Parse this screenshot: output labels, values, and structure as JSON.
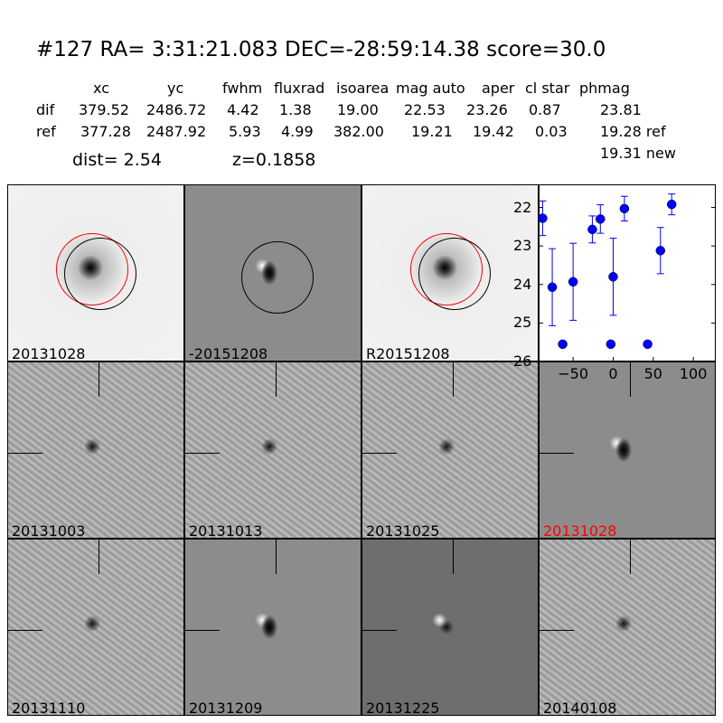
{
  "title": "#127   RA= 3:31:21.083 DEC=-28:59:14.38      score=30.0",
  "table": {
    "columns": [
      "xc",
      "yc",
      "fwhm",
      "fluxrad",
      "isoarea",
      "mag auto",
      "aper",
      "cl star",
      "phmag"
    ],
    "rows": [
      {
        "label": "dif",
        "values": [
          "379.52",
          "2486.72",
          "4.42",
          "1.38",
          "19.00",
          "22.53",
          "23.26",
          "0.87",
          "23.81"
        ]
      },
      {
        "label": "ref",
        "values": [
          "377.28",
          "2487.92",
          "5.93",
          "4.99",
          "382.00",
          "19.21",
          "19.42",
          "0.03",
          "19.28 ref"
        ]
      }
    ],
    "extra_phmag": "19.31 new",
    "dist": "dist=  2.54",
    "z": "z=0.1858"
  },
  "panels": [
    {
      "label": "20131028",
      "kind": "ref"
    },
    {
      "label": "-20151208",
      "kind": "diff"
    },
    {
      "label": "R20151208",
      "kind": "ref"
    },
    {
      "label": "20131003",
      "kind": "noisy"
    },
    {
      "label": "20131013",
      "kind": "noisy"
    },
    {
      "label": "20131025",
      "kind": "noisy"
    },
    {
      "label": "20131028",
      "kind": "diff",
      "color": "#ff0000"
    },
    {
      "label": "20131110",
      "kind": "noisy"
    },
    {
      "label": "20131209",
      "kind": "diff"
    },
    {
      "label": "20131225",
      "kind": "dark"
    },
    {
      "label": "20140108",
      "kind": "noisy"
    }
  ],
  "chart_data": {
    "type": "scatter",
    "xlim": [
      -93,
      128
    ],
    "ylim": [
      26,
      21.4
    ],
    "y_inverted": true,
    "xticks": [
      -50,
      0,
      50,
      100
    ],
    "yticks": [
      22,
      23,
      24,
      25,
      26
    ],
    "color": "#0000ff",
    "points": [
      {
        "x": -88,
        "y": 22.28,
        "err": 0.45
      },
      {
        "x": -76,
        "y": 24.07,
        "err": 1.0
      },
      {
        "x": -63,
        "y": 25.55,
        "err": 0.05
      },
      {
        "x": -50,
        "y": 23.93,
        "err": 1.0
      },
      {
        "x": -26,
        "y": 22.57,
        "err": 0.35
      },
      {
        "x": -16,
        "y": 22.3,
        "err": 0.37
      },
      {
        "x": -3,
        "y": 25.55,
        "err": 0.05
      },
      {
        "x": 0,
        "y": 23.8,
        "err": 1.0
      },
      {
        "x": 14,
        "y": 22.03,
        "err": 0.32
      },
      {
        "x": 43,
        "y": 25.55,
        "err": 0.05
      },
      {
        "x": 59,
        "y": 23.12,
        "err": 0.6
      },
      {
        "x": 73,
        "y": 21.92,
        "err": 0.27
      }
    ]
  }
}
